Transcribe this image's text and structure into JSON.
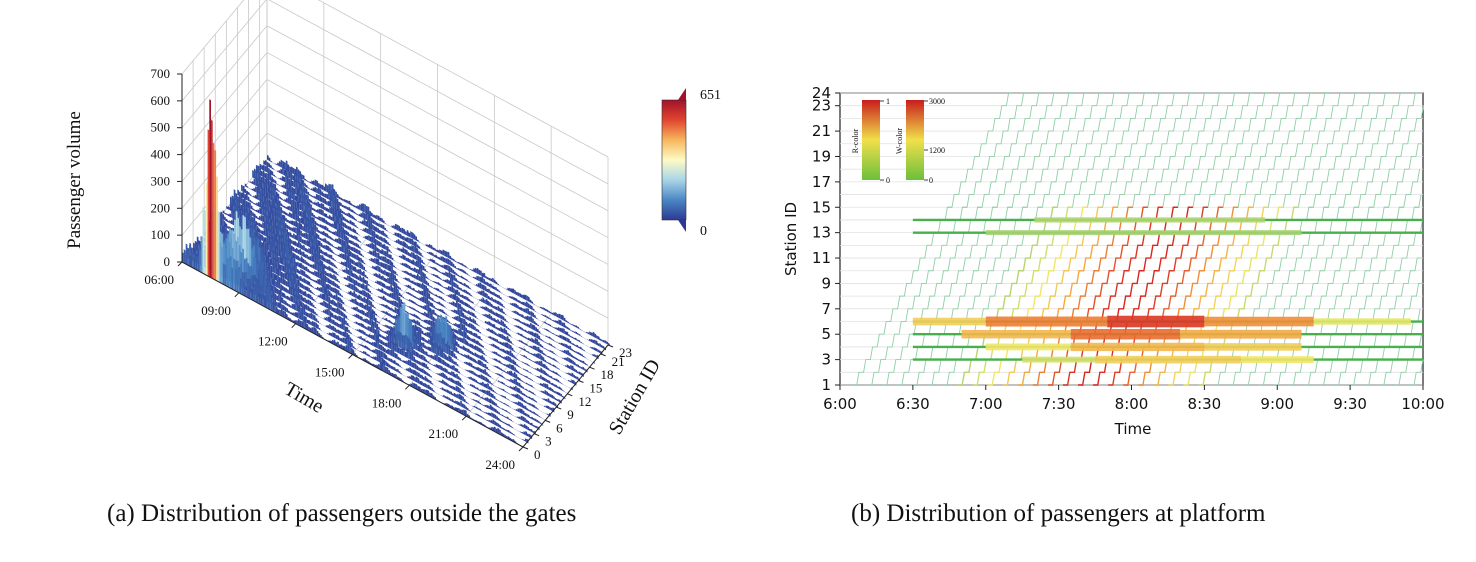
{
  "chart_data": [
    {
      "type": "surface3d",
      "caption": "(a)  Distribution of passengers outside the gates",
      "zlabel": "Passenger volume",
      "xlabel": "Time",
      "ylabel": "Station ID",
      "zlim": [
        0,
        700
      ],
      "z_ticks": [
        "0",
        "100",
        "200",
        "300",
        "400",
        "500",
        "600",
        "700"
      ],
      "time_ticks": [
        "06:00",
        "09:00",
        "12:00",
        "15:00",
        "18:00",
        "21:00",
        "24:00"
      ],
      "station_ticks": [
        "0",
        "3",
        "6",
        "9",
        "12",
        "15",
        "18",
        "21",
        "23"
      ],
      "colorbar": {
        "max_label": "651",
        "min_label": "0",
        "colors": [
          "#2c3a93",
          "#4a86c4",
          "#a9d5e9",
          "#fdfbc5",
          "#f7b65d",
          "#e0452f",
          "#a2122a"
        ]
      },
      "peaks": [
        {
          "time": "07:30",
          "station": 0,
          "value": 651
        },
        {
          "time": "08:30",
          "station": 3,
          "value": 200
        },
        {
          "time": "16:30",
          "station": 6,
          "value": 160
        },
        {
          "time": "18:00",
          "station": 9,
          "value": 150
        }
      ],
      "grid": true
    },
    {
      "type": "space-time-diagram",
      "caption": "(b)  Distribution of passengers at platform",
      "xlabel": "Time",
      "ylabel": "Station ID",
      "x_ticks": [
        "6:00",
        "6:30",
        "7:00",
        "7:30",
        "8:00",
        "8:30",
        "9:00",
        "9:30",
        "10:00"
      ],
      "x_range_min": [
        0,
        240
      ],
      "y_ticks": [
        1,
        3,
        5,
        7,
        9,
        11,
        13,
        15,
        17,
        19,
        21,
        23,
        24
      ],
      "y_range": [
        1,
        24
      ],
      "r_colorbar": {
        "label": "R-color",
        "ticks": [
          "1",
          "0"
        ]
      },
      "w_colorbar": {
        "label": "W-color",
        "ticks": [
          "3000",
          "1200",
          "0"
        ]
      },
      "platform_bands": [
        {
          "station": 3,
          "heat": [
            [
              75,
              105,
              0.25
            ],
            [
              105,
              165,
              0.45
            ],
            [
              165,
              195,
              0.35
            ]
          ]
        },
        {
          "station": 4,
          "heat": [
            [
              60,
              95,
              0.35
            ],
            [
              95,
              150,
              0.55
            ],
            [
              150,
              190,
              0.45
            ]
          ]
        },
        {
          "station": 5,
          "heat": [
            [
              50,
              95,
              0.55
            ],
            [
              95,
              140,
              0.8
            ],
            [
              140,
              190,
              0.6
            ]
          ]
        },
        {
          "station": 6,
          "heat": [
            [
              30,
              60,
              0.45
            ],
            [
              60,
              110,
              0.75
            ],
            [
              110,
              150,
              0.95
            ],
            [
              150,
              195,
              0.7
            ],
            [
              195,
              235,
              0.3
            ]
          ]
        },
        {
          "station": 13,
          "heat": [
            [
              60,
              190,
              0.12
            ]
          ]
        },
        {
          "station": 14,
          "heat": [
            [
              80,
              175,
              0.15
            ]
          ]
        }
      ]
    }
  ]
}
